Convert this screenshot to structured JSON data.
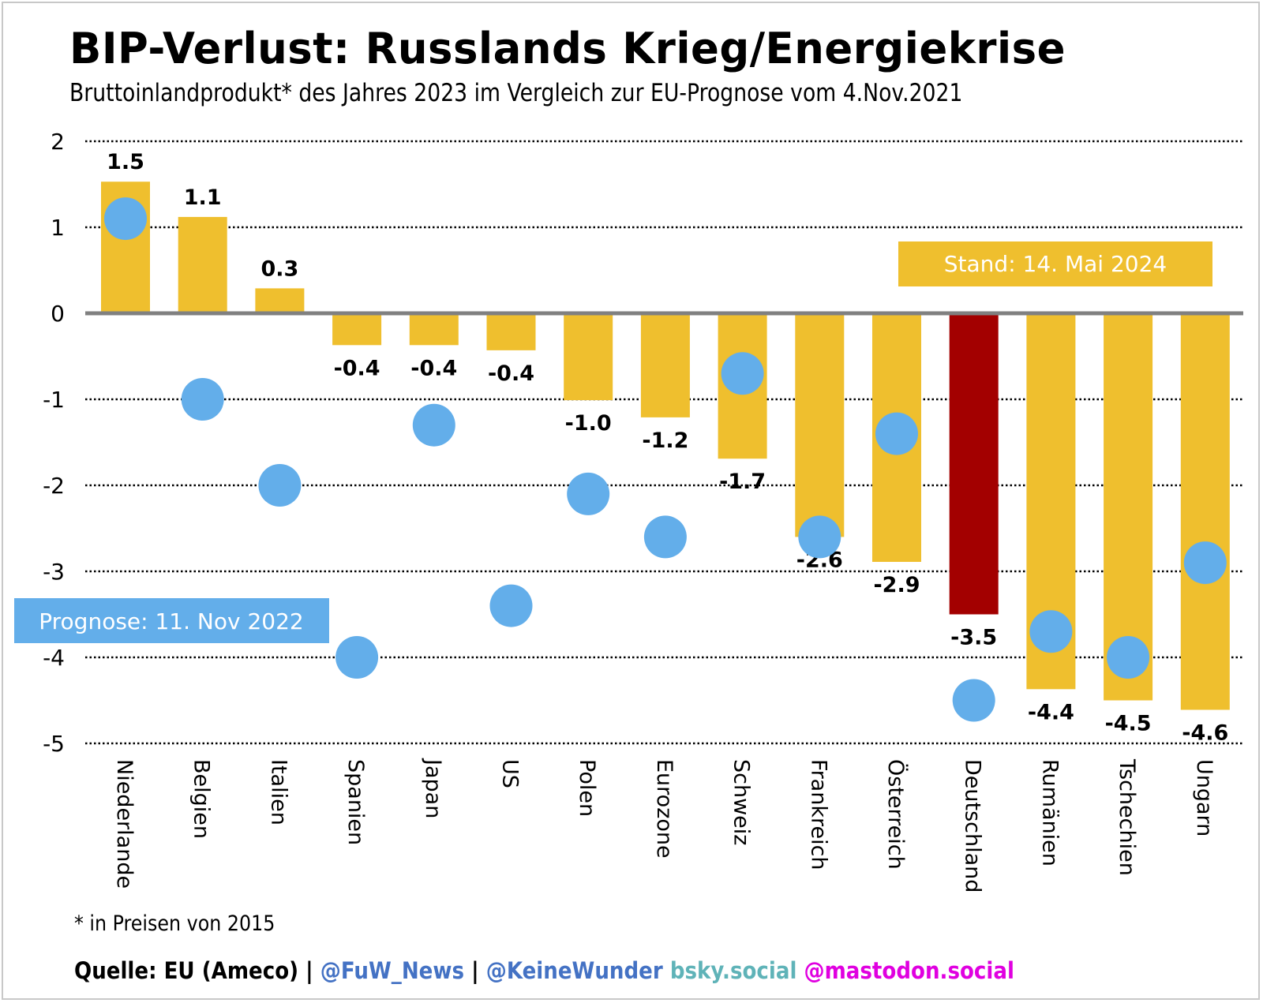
{
  "header": {
    "title": "BIP-Verlust: Russlands Krieg/Energiekrise",
    "subtitle": "Bruttoinlandprodukt* des Jahres 2023 im Vergleich zur EU-Prognose vom 4.Nov.2021"
  },
  "footer": {
    "footnote": "* in Preisen von 2015",
    "source_parts": [
      {
        "text": "Quelle: EU (Ameco) | ",
        "color": "#000000"
      },
      {
        "text": "@FuW_News",
        "color": "#4472c4"
      },
      {
        "text": " | ",
        "color": "#000000"
      },
      {
        "text": "@KeineWunder",
        "color": "#4472c4"
      },
      {
        "text": " bsky.social",
        "color": "#5fb3b8"
      },
      {
        "text": " @mastodon.social",
        "color": "#e000e0"
      }
    ]
  },
  "colors": {
    "bar": "#efbf2e",
    "highlight_bar": "#a30000",
    "dot": "#63aeea",
    "zero_line": "#808080",
    "grid": "#000000"
  },
  "chart_data": {
    "type": "bar",
    "title": "BIP-Verlust: Russlands Krieg/Energiekrise",
    "subtitle": "Bruttoinlandprodukt* des Jahres 2023 im Vergleich zur EU-Prognose vom 4.Nov.2021",
    "xlabel": "",
    "ylabel": "",
    "ylim": [
      -5,
      2
    ],
    "yticks": [
      2,
      1,
      0,
      -1,
      -2,
      -3,
      -4,
      -5
    ],
    "grid": true,
    "categories": [
      "Niederlande",
      "Belgien",
      "Italien",
      "Spanien",
      "Japan",
      "US",
      "Polen",
      "Eurozone",
      "Schweiz",
      "Frankreich",
      "Österreich",
      "Deutschland",
      "Rumänien",
      "Tschechien",
      "Ungarn"
    ],
    "highlight_category": "Deutschland",
    "series": [
      {
        "name": "Stand: 14. Mai 2024",
        "type": "bar",
        "values": [
          1.5,
          1.1,
          0.3,
          -0.4,
          -0.4,
          -0.4,
          -1.0,
          -1.2,
          -1.7,
          -2.6,
          -2.9,
          -3.5,
          -4.4,
          -4.5,
          -4.6
        ],
        "bar_heights_approx": [
          1.53,
          1.12,
          0.29,
          -0.37,
          -0.37,
          -0.43,
          -1.01,
          -1.21,
          -1.69,
          -2.6,
          -2.89,
          -3.5,
          -4.37,
          -4.5,
          -4.61
        ],
        "labels": [
          "1.5",
          "1.1",
          "0.3",
          "-0.4",
          "-0.4",
          "-0.4",
          "-1.0",
          "-1.2",
          "-1.7",
          "-2.6",
          "-2.9",
          "-3.5",
          "-4.4",
          "-4.5",
          "-4.6"
        ]
      },
      {
        "name": "Prognose: 11. Nov 2022",
        "type": "scatter",
        "values": [
          1.1,
          -1.0,
          -2.0,
          -4.0,
          -1.3,
          -3.4,
          -2.1,
          -2.6,
          -0.7,
          -2.6,
          -1.4,
          -4.5,
          -3.7,
          -4.0,
          -2.9
        ]
      }
    ],
    "annotations": [
      {
        "text": "Stand: 14. Mai 2024",
        "series": 0,
        "placement": "top-right"
      },
      {
        "text": "Prognose: 11. Nov 2022",
        "series": 1,
        "placement": "bottom-left"
      }
    ]
  }
}
